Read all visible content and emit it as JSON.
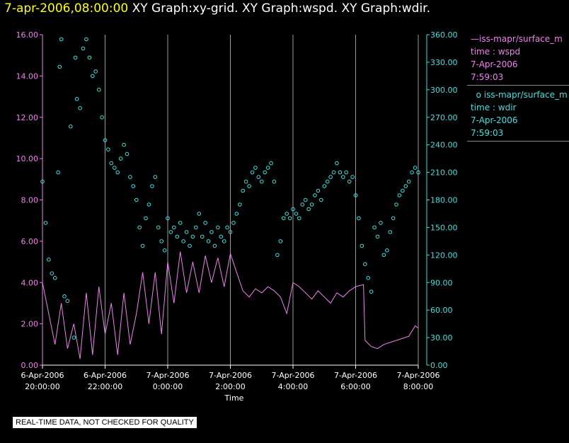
{
  "header": {
    "timestamp": "7-apr-2006,08:00:00",
    "graphs": "XY Graph:xy-grid.  XY Graph:wspd.  XY Graph:wdir."
  },
  "legend": {
    "series1_name": "iss-mapr/surface_m",
    "series1_var": "time : wspd",
    "series1_date": "7-Apr-2006",
    "series1_time": "7:59:03",
    "series2_name": "iss-mapr/surface_m",
    "series2_var": "time : wdir",
    "series2_date": "7-Apr-2006",
    "series2_time": "7:59:03"
  },
  "footer": {
    "quality_note": "REAL-TIME DATA, NOT CHECKED FOR QUALITY"
  },
  "colors": {
    "wspd": "#ee82ee",
    "wdir": "#40e0e0",
    "timestamp": "#ffff00",
    "grid": "#9a9a9a"
  },
  "chart_data": {
    "type": "line",
    "xlabel": "Time",
    "xlim_hours": [
      20.0,
      32.0
    ],
    "x_ticks": [
      {
        "date": "6-Apr-2006",
        "time": "20:00:00"
      },
      {
        "date": "6-Apr-2006",
        "time": "22:00:00"
      },
      {
        "date": "7-Apr-2006",
        "time": "0:00:00"
      },
      {
        "date": "7-Apr-2006",
        "time": "2:00:00"
      },
      {
        "date": "7-Apr-2006",
        "time": "4:00:00"
      },
      {
        "date": "7-Apr-2006",
        "time": "6:00:00"
      },
      {
        "date": "7-Apr-2006",
        "time": "8:00:00"
      }
    ],
    "y_left": {
      "ylim": [
        0,
        16
      ],
      "ticks": [
        "0.00",
        "2.00",
        "4.00",
        "6.00",
        "8.00",
        "10.00",
        "12.00",
        "14.00",
        "16.00"
      ]
    },
    "y_right": {
      "ylim": [
        0,
        360
      ],
      "ticks": [
        "0.00",
        "30.00",
        "60.00",
        "90.00",
        "120.00",
        "150.00",
        "180.00",
        "210.00",
        "240.00",
        "270.00",
        "300.00",
        "330.00",
        "360.00"
      ]
    },
    "series": [
      {
        "name": "iss-mapr/surface_m wspd",
        "axis": "left",
        "style": "line",
        "points": [
          [
            20.0,
            4.0
          ],
          [
            20.2,
            2.5
          ],
          [
            20.4,
            1.0
          ],
          [
            20.6,
            3.0
          ],
          [
            20.8,
            0.8
          ],
          [
            21.0,
            2.0
          ],
          [
            21.2,
            0.3
          ],
          [
            21.4,
            3.5
          ],
          [
            21.6,
            0.5
          ],
          [
            21.8,
            3.8
          ],
          [
            22.0,
            1.5
          ],
          [
            22.2,
            3.0
          ],
          [
            22.4,
            0.5
          ],
          [
            22.6,
            3.5
          ],
          [
            22.8,
            1.0
          ],
          [
            23.0,
            2.5
          ],
          [
            23.2,
            4.5
          ],
          [
            23.4,
            2.0
          ],
          [
            23.6,
            4.5
          ],
          [
            23.8,
            1.5
          ],
          [
            24.0,
            5.0
          ],
          [
            24.2,
            3.0
          ],
          [
            24.4,
            5.5
          ],
          [
            24.6,
            3.5
          ],
          [
            24.8,
            5.0
          ],
          [
            25.0,
            3.5
          ],
          [
            25.2,
            5.3
          ],
          [
            25.4,
            4.0
          ],
          [
            25.6,
            5.2
          ],
          [
            25.8,
            3.8
          ],
          [
            26.0,
            5.4
          ],
          [
            26.2,
            4.5
          ],
          [
            26.4,
            3.6
          ],
          [
            26.6,
            3.3
          ],
          [
            26.8,
            3.7
          ],
          [
            27.0,
            3.5
          ],
          [
            27.2,
            3.8
          ],
          [
            27.4,
            3.6
          ],
          [
            27.6,
            3.3
          ],
          [
            27.8,
            2.5
          ],
          [
            28.0,
            4.0
          ],
          [
            28.2,
            3.8
          ],
          [
            28.4,
            3.5
          ],
          [
            28.6,
            3.2
          ],
          [
            28.8,
            3.6
          ],
          [
            29.0,
            3.3
          ],
          [
            29.2,
            3.0
          ],
          [
            29.4,
            3.5
          ],
          [
            29.6,
            3.3
          ],
          [
            29.8,
            3.6
          ],
          [
            30.0,
            3.8
          ],
          [
            30.25,
            3.9
          ],
          [
            30.3,
            1.2
          ],
          [
            30.5,
            0.9
          ],
          [
            30.7,
            0.8
          ],
          [
            30.9,
            1.0
          ],
          [
            31.1,
            1.1
          ],
          [
            31.3,
            1.2
          ],
          [
            31.5,
            1.3
          ],
          [
            31.7,
            1.4
          ],
          [
            31.9,
            1.9
          ],
          [
            32.0,
            1.8
          ]
        ]
      },
      {
        "name": "iss-mapr/surface_m wdir",
        "axis": "right",
        "style": "markers",
        "points": [
          [
            20.0,
            200
          ],
          [
            20.1,
            155
          ],
          [
            20.2,
            115
          ],
          [
            20.3,
            100
          ],
          [
            20.4,
            95
          ],
          [
            20.5,
            210
          ],
          [
            20.55,
            325
          ],
          [
            20.6,
            355
          ],
          [
            20.7,
            75
          ],
          [
            20.8,
            70
          ],
          [
            20.9,
            260
          ],
          [
            21.0,
            30
          ],
          [
            21.05,
            335
          ],
          [
            21.1,
            290
          ],
          [
            21.2,
            280
          ],
          [
            21.3,
            345
          ],
          [
            21.4,
            355
          ],
          [
            21.5,
            335
          ],
          [
            21.6,
            315
          ],
          [
            21.7,
            320
          ],
          [
            21.8,
            300
          ],
          [
            21.9,
            270
          ],
          [
            22.0,
            245
          ],
          [
            22.1,
            235
          ],
          [
            22.2,
            220
          ],
          [
            22.3,
            215
          ],
          [
            22.4,
            210
          ],
          [
            22.5,
            225
          ],
          [
            22.6,
            240
          ],
          [
            22.7,
            230
          ],
          [
            22.8,
            205
          ],
          [
            22.9,
            195
          ],
          [
            23.0,
            180
          ],
          [
            23.1,
            150
          ],
          [
            23.2,
            130
          ],
          [
            23.3,
            160
          ],
          [
            23.4,
            175
          ],
          [
            23.5,
            195
          ],
          [
            23.6,
            205
          ],
          [
            23.7,
            150
          ],
          [
            23.8,
            135
          ],
          [
            23.9,
            125
          ],
          [
            24.0,
            160
          ],
          [
            24.1,
            145
          ],
          [
            24.2,
            150
          ],
          [
            24.3,
            140
          ],
          [
            24.4,
            155
          ],
          [
            24.5,
            135
          ],
          [
            24.6,
            145
          ],
          [
            24.7,
            130
          ],
          [
            24.8,
            140
          ],
          [
            24.9,
            150
          ],
          [
            25.0,
            165
          ],
          [
            25.1,
            140
          ],
          [
            25.2,
            155
          ],
          [
            25.3,
            135
          ],
          [
            25.4,
            145
          ],
          [
            25.5,
            130
          ],
          [
            25.6,
            150
          ],
          [
            25.7,
            140
          ],
          [
            25.8,
            135
          ],
          [
            25.9,
            150
          ],
          [
            26.0,
            145
          ],
          [
            26.1,
            155
          ],
          [
            26.2,
            165
          ],
          [
            26.3,
            175
          ],
          [
            26.4,
            190
          ],
          [
            26.5,
            200
          ],
          [
            26.6,
            195
          ],
          [
            26.7,
            210
          ],
          [
            26.8,
            215
          ],
          [
            26.9,
            205
          ],
          [
            27.0,
            200
          ],
          [
            27.1,
            210
          ],
          [
            27.2,
            215
          ],
          [
            27.3,
            220
          ],
          [
            27.4,
            200
          ],
          [
            27.5,
            120
          ],
          [
            27.6,
            135
          ],
          [
            27.7,
            160
          ],
          [
            27.8,
            165
          ],
          [
            27.9,
            160
          ],
          [
            28.0,
            170
          ],
          [
            28.1,
            165
          ],
          [
            28.2,
            160
          ],
          [
            28.3,
            175
          ],
          [
            28.4,
            180
          ],
          [
            28.5,
            170
          ],
          [
            28.6,
            175
          ],
          [
            28.7,
            185
          ],
          [
            28.8,
            190
          ],
          [
            28.9,
            180
          ],
          [
            29.0,
            195
          ],
          [
            29.1,
            200
          ],
          [
            29.2,
            205
          ],
          [
            29.3,
            210
          ],
          [
            29.4,
            220
          ],
          [
            29.5,
            210
          ],
          [
            29.6,
            205
          ],
          [
            29.7,
            210
          ],
          [
            29.8,
            200
          ],
          [
            29.9,
            205
          ],
          [
            30.0,
            185
          ],
          [
            30.1,
            160
          ],
          [
            30.2,
            130
          ],
          [
            30.3,
            110
          ],
          [
            30.4,
            95
          ],
          [
            30.5,
            80
          ],
          [
            30.6,
            150
          ],
          [
            30.7,
            140
          ],
          [
            30.8,
            155
          ],
          [
            30.9,
            120
          ],
          [
            31.0,
            125
          ],
          [
            31.1,
            145
          ],
          [
            31.2,
            160
          ],
          [
            31.3,
            175
          ],
          [
            31.4,
            185
          ],
          [
            31.5,
            190
          ],
          [
            31.6,
            195
          ],
          [
            31.7,
            200
          ],
          [
            31.8,
            210
          ],
          [
            31.9,
            215
          ],
          [
            32.0,
            210
          ]
        ]
      }
    ]
  }
}
